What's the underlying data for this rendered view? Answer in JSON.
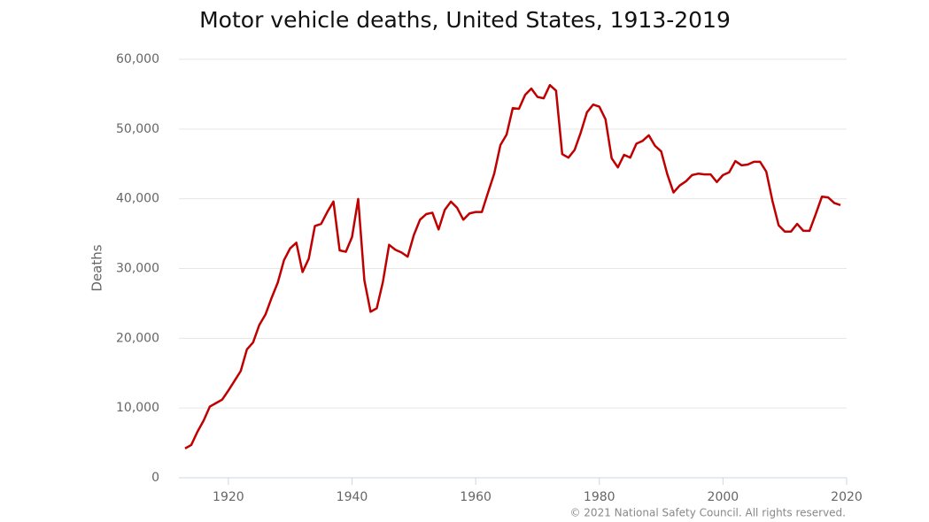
{
  "chart_data": {
    "type": "line",
    "title": "Motor vehicle deaths, United States, 1913-2019",
    "y_label": "Deaths",
    "credit": "© 2021 National Safety Council. All rights reserved.",
    "x": [
      1913,
      1914,
      1915,
      1916,
      1917,
      1918,
      1919,
      1920,
      1921,
      1922,
      1923,
      1924,
      1925,
      1926,
      1927,
      1928,
      1929,
      1930,
      1931,
      1932,
      1933,
      1934,
      1935,
      1936,
      1937,
      1938,
      1939,
      1940,
      1941,
      1942,
      1943,
      1944,
      1945,
      1946,
      1947,
      1948,
      1949,
      1950,
      1951,
      1952,
      1953,
      1954,
      1955,
      1956,
      1957,
      1958,
      1959,
      1960,
      1961,
      1962,
      1963,
      1964,
      1965,
      1966,
      1967,
      1968,
      1969,
      1970,
      1971,
      1972,
      1973,
      1974,
      1975,
      1976,
      1977,
      1978,
      1979,
      1980,
      1981,
      1982,
      1983,
      1984,
      1985,
      1986,
      1987,
      1988,
      1989,
      1990,
      1991,
      1992,
      1993,
      1994,
      1995,
      1996,
      1997,
      1998,
      1999,
      2000,
      2001,
      2002,
      2003,
      2004,
      2005,
      2006,
      2007,
      2008,
      2009,
      2010,
      2011,
      2012,
      2013,
      2014,
      2015,
      2016,
      2017,
      2018,
      2019
    ],
    "series": [
      {
        "name": "Deaths",
        "color": "#c00000",
        "values": [
          4200,
          4700,
          6600,
          8200,
          10200,
          10700,
          11200,
          12500,
          13900,
          15300,
          18400,
          19400,
          21900,
          23400,
          25800,
          28000,
          31200,
          32900,
          33700,
          29500,
          31400,
          36100,
          36400,
          38100,
          39600,
          32600,
          32400,
          34500,
          39969,
          28300,
          23800,
          24300,
          28100,
          33400,
          32700,
          32300,
          31700,
          34800,
          37000,
          37800,
          38000,
          35600,
          38400,
          39600,
          38700,
          37000,
          37900,
          38100,
          38100,
          40900,
          43600,
          47700,
          49200,
          53000,
          52900,
          54900,
          55800,
          54600,
          54400,
          56300,
          55500,
          46400,
          45900,
          47000,
          49500,
          52400,
          53500,
          53200,
          51400,
          45800,
          44500,
          46300,
          45900,
          47900,
          48300,
          49100,
          47600,
          46800,
          43500,
          40900,
          41900,
          42500,
          43400,
          43600,
          43500,
          43500,
          42400,
          43400,
          43800,
          45400,
          44800,
          44900,
          45300,
          45300,
          43900,
          39700,
          36200,
          35300,
          35300,
          36400,
          35400,
          35400,
          37800,
          40300,
          40200,
          39400,
          39100
        ]
      }
    ],
    "xlim": [
      1912,
      2020
    ],
    "xticks": [
      1920,
      1940,
      1960,
      1980,
      2000,
      2020
    ],
    "ylim": [
      0,
      60000
    ],
    "yticks": [
      0,
      {
        "value": 10000,
        "label": "10,000"
      },
      {
        "value": 20000,
        "label": "20,000"
      },
      {
        "value": 30000,
        "label": "30,000"
      },
      {
        "value": 40000,
        "label": "40,000"
      },
      {
        "value": 50000,
        "label": "50,000"
      },
      {
        "value": 60000,
        "label": "60,000"
      }
    ],
    "grid": true
  }
}
